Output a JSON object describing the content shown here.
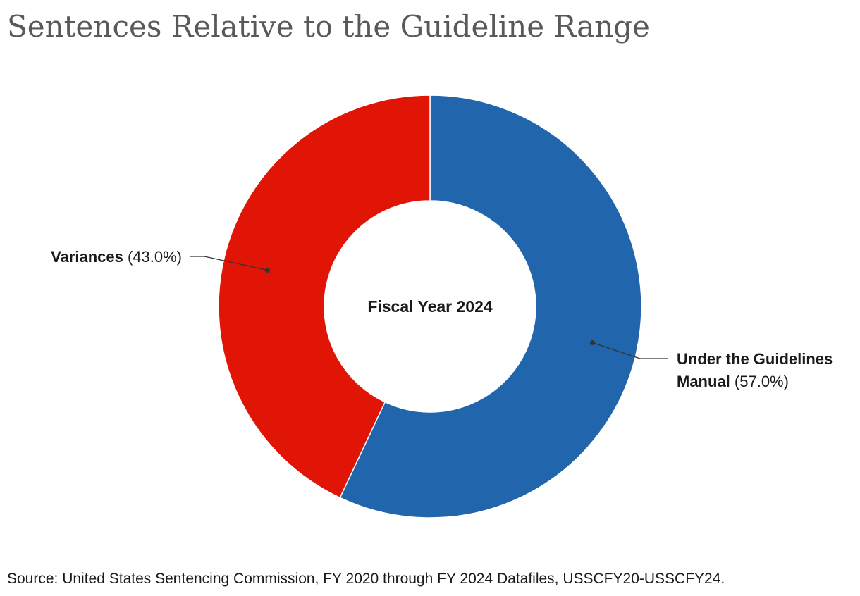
{
  "title": "Sentences Relative to the Guideline Range",
  "source": "Source: United States Sentencing Commission, FY 2020 through FY 2024 Datafiles, USSCFY20-USSCFY24.",
  "chart_data": {
    "type": "pie",
    "variant": "donut",
    "center_label": "Fiscal Year 2024",
    "slices": [
      {
        "label_lines": [
          "Under the Guidelines",
          "Manual"
        ],
        "value": 57.0,
        "value_text": "(57.0%)",
        "color": "#2166ac",
        "label_side": "right"
      },
      {
        "label_lines": [
          "Variances"
        ],
        "value": 43.0,
        "value_text": "(43.0%)",
        "color": "#e01505",
        "label_side": "left"
      }
    ],
    "legend": "none"
  }
}
